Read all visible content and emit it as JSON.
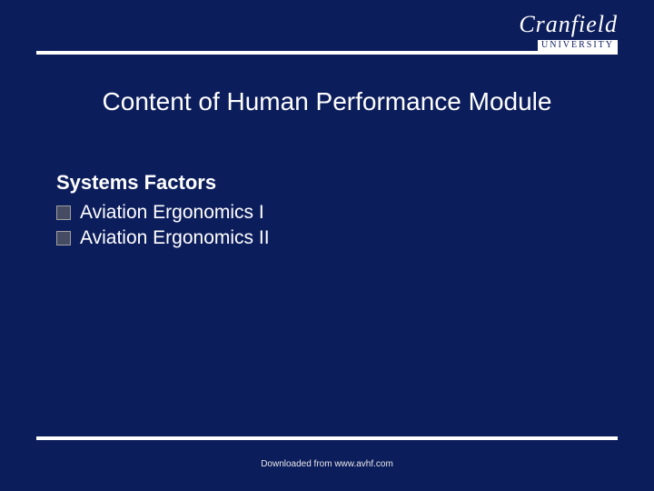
{
  "logo": {
    "main": "Cranfield",
    "sub": "UNIVERSITY"
  },
  "title": "Content of Human Performance Module",
  "section": {
    "heading": "Systems Factors",
    "items": [
      "Aviation Ergonomics I",
      "Aviation Ergonomics II"
    ]
  },
  "footer": "Downloaded from www.avhf.com",
  "colors": {
    "background": "#0c1d5c",
    "rule": "#ffffff",
    "text": "#ffffff",
    "bullet_fill": "#444b63",
    "bullet_border": "#a0a0a0"
  },
  "typography": {
    "title_fontsize": 28,
    "heading_fontsize": 22,
    "body_fontsize": 21,
    "footer_fontsize": 10,
    "logo_main_fontsize": 26,
    "logo_sub_fontsize": 10
  }
}
